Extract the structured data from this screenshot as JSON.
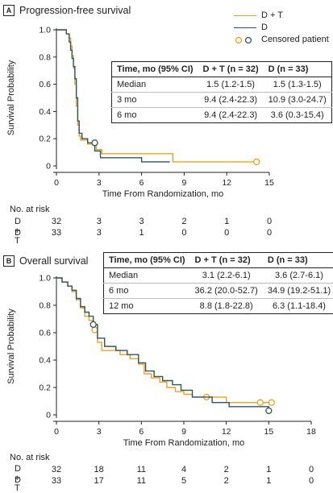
{
  "colors": {
    "dt": "#f0a020",
    "d": "#2e5560",
    "axis": "#222222"
  },
  "panels": [
    {
      "letter": "A",
      "title": "Progression-free survival",
      "legend": {
        "dt": "D + T",
        "d": "D",
        "censored": "Censored patient"
      },
      "table": {
        "headers": [
          "Time, mo (95% CI)",
          "D + T (n = 32)",
          "D (n = 33)"
        ],
        "rows": [
          [
            "Median",
            "1.5 (1.2-1.5)",
            "1.5 (1.3-1.5)"
          ],
          [
            "3 mo",
            "9.4 (2.4-22.3)",
            "10.9 (3.0-24.7)"
          ],
          [
            "6 mo",
            "9.4 (2.4-22.3)",
            "3.6 (0.3-15.4)"
          ]
        ]
      },
      "risk": {
        "title": "No. at risk",
        "rows": [
          {
            "label": "D + T",
            "values": [
              "32",
              "3",
              "3",
              "2",
              "1",
              "0"
            ]
          },
          {
            "label": "D",
            "values": [
              "33",
              "3",
              "1",
              "0",
              "0",
              "0"
            ]
          }
        ]
      }
    },
    {
      "letter": "B",
      "title": "Overall survival",
      "table": {
        "headers": [
          "Time, mo (95% CI)",
          "D + T (n = 32)",
          "D (n = 33)"
        ],
        "rows": [
          [
            "Median",
            "3.1 (2.2-6.1)",
            "3.6 (2.7-6.1)"
          ],
          [
            "6 mo",
            "36.2 (20.0-52.7)",
            "34.9 (19.2-51.1)"
          ],
          [
            "12 mo",
            "8.8 (1.8-22.8)",
            "6.3 (1.1-18.4)"
          ]
        ]
      },
      "risk": {
        "title": "No. at risk",
        "rows": [
          {
            "label": "D + T",
            "values": [
              "32",
              "18",
              "11",
              "4",
              "2",
              "1",
              "0"
            ]
          },
          {
            "label": "D",
            "values": [
              "33",
              "17",
              "11",
              "5",
              "2",
              "1",
              "0"
            ]
          }
        ]
      }
    }
  ],
  "chart_data": [
    {
      "type": "line",
      "title": "Progression-free survival",
      "xlabel": "Time From Randomization, mo",
      "ylabel": "Survival Probability",
      "xlim": [
        0,
        15
      ],
      "ylim": [
        0,
        1.0
      ],
      "xticks": [
        0,
        3,
        6,
        9,
        12,
        15
      ],
      "yticks": [
        0,
        0.2,
        0.4,
        0.6,
        0.8,
        1.0
      ],
      "ytick_labels": [
        "0",
        "0.2",
        "0.4",
        "0.6",
        "0.8",
        "1.0"
      ],
      "series": [
        {
          "name": "D + T",
          "x": [
            0,
            0.5,
            0.7,
            0.9,
            1.0,
            1.1,
            1.2,
            1.3,
            1.4,
            1.5,
            1.6,
            1.7,
            2.2,
            2.8,
            3.2,
            6.2,
            8.2,
            14.1
          ],
          "y": [
            1.0,
            1.0,
            0.97,
            0.94,
            0.88,
            0.81,
            0.72,
            0.6,
            0.44,
            0.3,
            0.22,
            0.19,
            0.16,
            0.12,
            0.09,
            0.09,
            0.03,
            0.03
          ],
          "censored": [
            {
              "x": 14.1,
              "y": 0.03
            }
          ]
        },
        {
          "name": "D",
          "x": [
            0,
            0.5,
            0.7,
            0.9,
            1.0,
            1.1,
            1.2,
            1.3,
            1.4,
            1.5,
            1.6,
            1.8,
            2.2,
            2.7,
            3.1,
            6.0,
            8.0
          ],
          "y": [
            1.0,
            1.0,
            0.97,
            0.91,
            0.85,
            0.79,
            0.73,
            0.64,
            0.5,
            0.33,
            0.24,
            0.2,
            0.17,
            0.11,
            0.06,
            0.03,
            0.03
          ],
          "censored": [
            {
              "x": 2.7,
              "y": 0.17
            }
          ]
        }
      ]
    },
    {
      "type": "line",
      "title": "Overall survival",
      "xlabel": "Time From Randomization, mo",
      "ylabel": "Survival Probability",
      "xlim": [
        0,
        18
      ],
      "ylim": [
        0,
        1.0
      ],
      "xticks": [
        0,
        3,
        6,
        9,
        12,
        15,
        18
      ],
      "yticks": [
        0,
        0.2,
        0.4,
        0.6,
        0.8,
        1.0
      ],
      "ytick_labels": [
        "0",
        "0.2",
        "0.4",
        "0.6",
        "0.8",
        "1.0"
      ],
      "series": [
        {
          "name": "D + T",
          "x": [
            0,
            0.4,
            0.8,
            1.1,
            1.4,
            1.7,
            2.0,
            2.3,
            2.6,
            2.9,
            3.2,
            4.0,
            4.5,
            5.2,
            5.8,
            6.2,
            6.7,
            7.3,
            7.8,
            8.4,
            9.0,
            9.6,
            10.6,
            12.0,
            14.2,
            15.1
          ],
          "y": [
            1.0,
            0.97,
            0.94,
            0.9,
            0.84,
            0.78,
            0.72,
            0.69,
            0.62,
            0.53,
            0.47,
            0.47,
            0.44,
            0.41,
            0.37,
            0.3,
            0.27,
            0.24,
            0.2,
            0.17,
            0.15,
            0.13,
            0.13,
            0.09,
            0.09,
            0.09
          ],
          "censored": [
            {
              "x": 2.7,
              "y": 0.62
            },
            {
              "x": 10.6,
              "y": 0.13
            },
            {
              "x": 14.4,
              "y": 0.09
            },
            {
              "x": 15.2,
              "y": 0.09
            }
          ]
        },
        {
          "name": "D",
          "x": [
            0,
            0.4,
            0.8,
            1.1,
            1.4,
            1.7,
            2.0,
            2.3,
            2.6,
            2.9,
            3.4,
            4.2,
            5.0,
            5.8,
            6.3,
            6.9,
            7.5,
            8.2,
            8.8,
            9.6,
            11.0,
            12.2,
            15.0
          ],
          "y": [
            1.0,
            0.97,
            0.94,
            0.91,
            0.85,
            0.79,
            0.75,
            0.72,
            0.66,
            0.56,
            0.5,
            0.47,
            0.44,
            0.38,
            0.32,
            0.28,
            0.25,
            0.22,
            0.18,
            0.13,
            0.09,
            0.06,
            0.03
          ],
          "censored": [
            {
              "x": 2.6,
              "y": 0.66
            },
            {
              "x": 15.0,
              "y": 0.03
            }
          ]
        }
      ]
    }
  ]
}
